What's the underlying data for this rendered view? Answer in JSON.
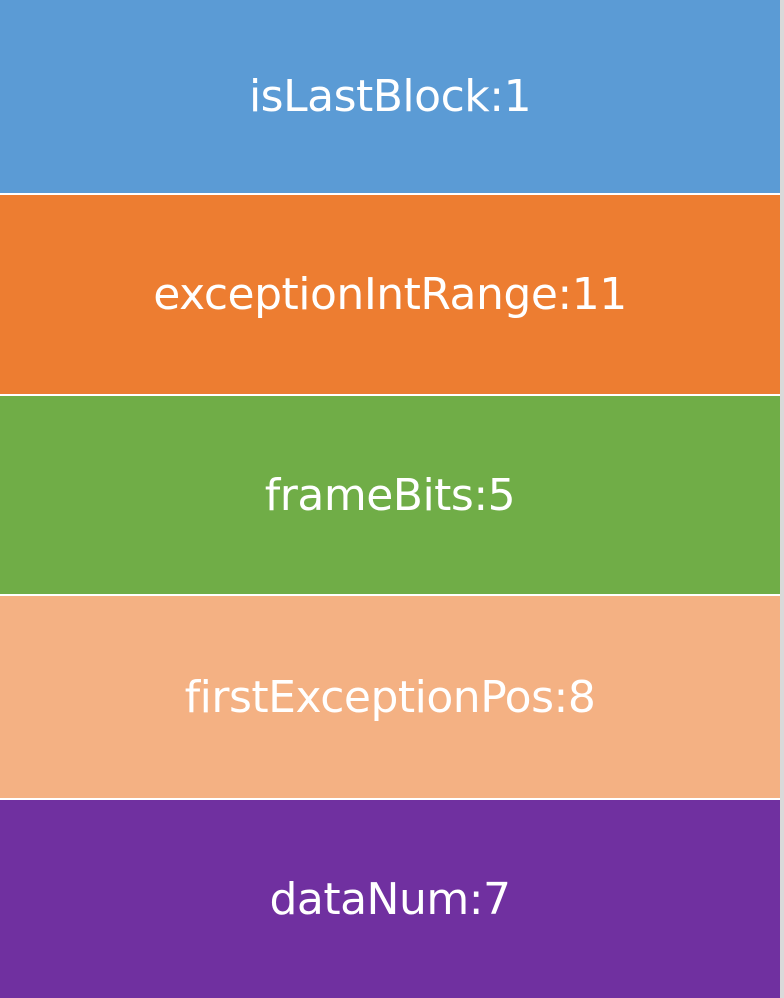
{
  "fields": [
    {
      "label": "isLastBlock:1",
      "color": "#5B9BD5"
    },
    {
      "label": "exceptionIntRange:11",
      "color": "#ED7D31"
    },
    {
      "label": "frameBits:5",
      "color": "#70AD47"
    },
    {
      "label": "firstExceptionPos:8",
      "color": "#F4B183"
    },
    {
      "label": "dataNum:7",
      "color": "#7030A0"
    }
  ]
}
